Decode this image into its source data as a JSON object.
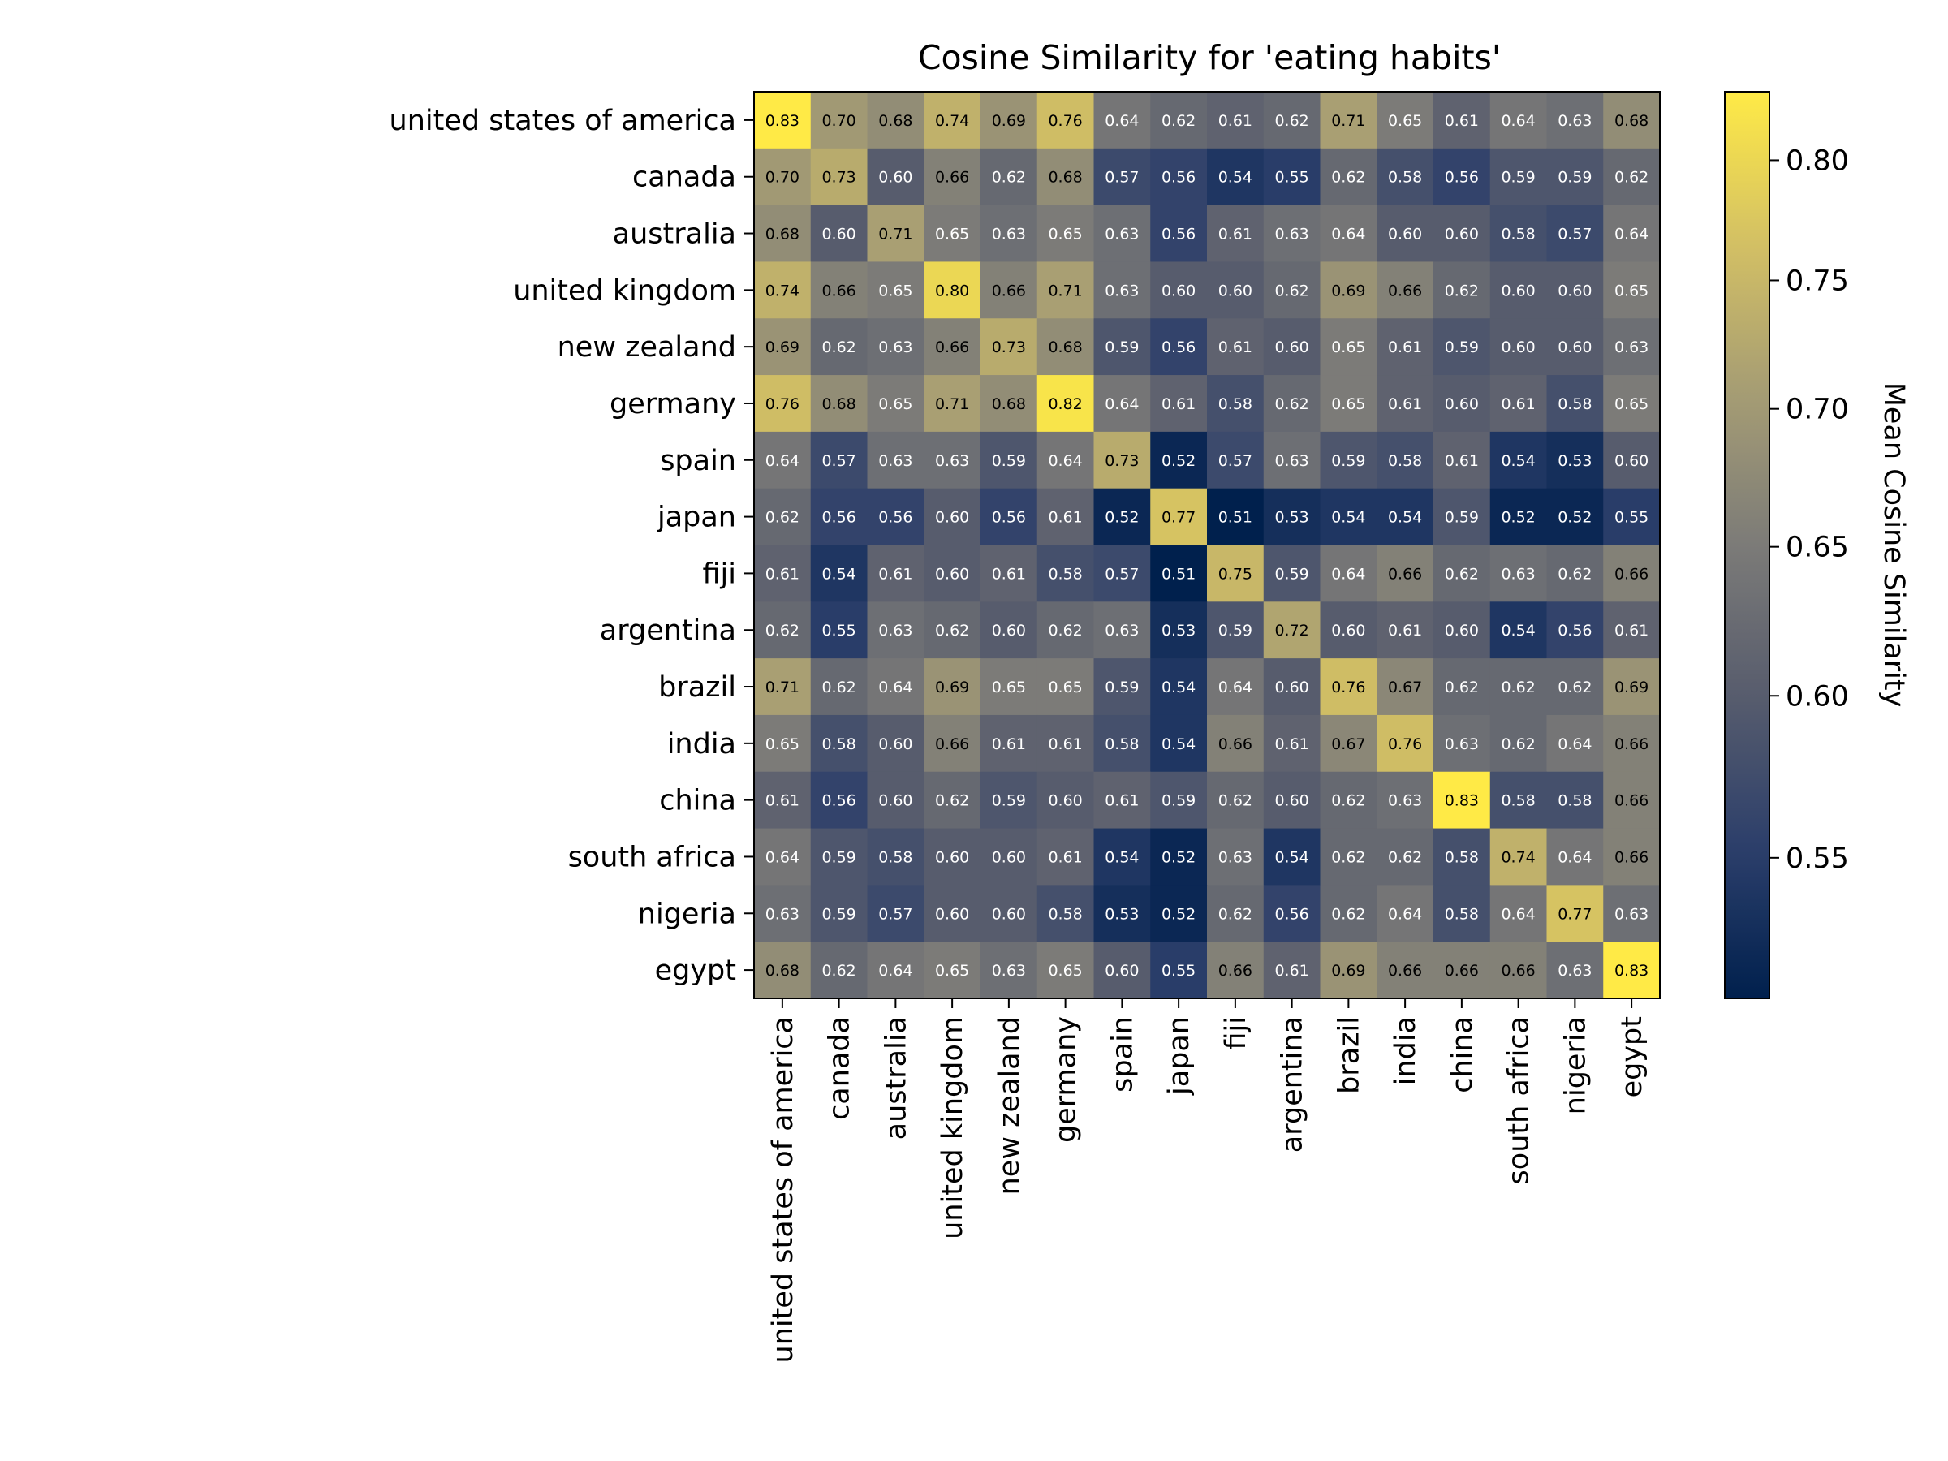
{
  "chart_data": {
    "type": "heatmap",
    "title": "Cosine Similarity for 'eating habits'",
    "categories": [
      "united states of america",
      "canada",
      "australia",
      "united kingdom",
      "new zealand",
      "germany",
      "spain",
      "japan",
      "fiji",
      "argentina",
      "brazil",
      "india",
      "china",
      "south africa",
      "nigeria",
      "egypt"
    ],
    "values": [
      [
        0.83,
        0.7,
        0.68,
        0.74,
        0.69,
        0.76,
        0.64,
        0.62,
        0.61,
        0.62,
        0.71,
        0.65,
        0.61,
        0.64,
        0.63,
        0.68
      ],
      [
        0.7,
        0.73,
        0.6,
        0.66,
        0.62,
        0.68,
        0.57,
        0.56,
        0.54,
        0.55,
        0.62,
        0.58,
        0.56,
        0.59,
        0.59,
        0.62
      ],
      [
        0.68,
        0.6,
        0.71,
        0.65,
        0.63,
        0.65,
        0.63,
        0.56,
        0.61,
        0.63,
        0.64,
        0.6,
        0.6,
        0.58,
        0.57,
        0.64
      ],
      [
        0.74,
        0.66,
        0.65,
        0.8,
        0.66,
        0.71,
        0.63,
        0.6,
        0.6,
        0.62,
        0.69,
        0.66,
        0.62,
        0.6,
        0.6,
        0.65
      ],
      [
        0.69,
        0.62,
        0.63,
        0.66,
        0.73,
        0.68,
        0.59,
        0.56,
        0.61,
        0.6,
        0.65,
        0.61,
        0.59,
        0.6,
        0.6,
        0.63
      ],
      [
        0.76,
        0.68,
        0.65,
        0.71,
        0.68,
        0.82,
        0.64,
        0.61,
        0.58,
        0.62,
        0.65,
        0.61,
        0.6,
        0.61,
        0.58,
        0.65
      ],
      [
        0.64,
        0.57,
        0.63,
        0.63,
        0.59,
        0.64,
        0.73,
        0.52,
        0.57,
        0.63,
        0.59,
        0.58,
        0.61,
        0.54,
        0.53,
        0.6
      ],
      [
        0.62,
        0.56,
        0.56,
        0.6,
        0.56,
        0.61,
        0.52,
        0.77,
        0.51,
        0.53,
        0.54,
        0.54,
        0.59,
        0.52,
        0.52,
        0.55
      ],
      [
        0.61,
        0.54,
        0.61,
        0.6,
        0.61,
        0.58,
        0.57,
        0.51,
        0.75,
        0.59,
        0.64,
        0.66,
        0.62,
        0.63,
        0.62,
        0.66
      ],
      [
        0.62,
        0.55,
        0.63,
        0.62,
        0.6,
        0.62,
        0.63,
        0.53,
        0.59,
        0.72,
        0.6,
        0.61,
        0.6,
        0.54,
        0.56,
        0.61
      ],
      [
        0.71,
        0.62,
        0.64,
        0.69,
        0.65,
        0.65,
        0.59,
        0.54,
        0.64,
        0.6,
        0.76,
        0.67,
        0.62,
        0.62,
        0.62,
        0.69
      ],
      [
        0.65,
        0.58,
        0.6,
        0.66,
        0.61,
        0.61,
        0.58,
        0.54,
        0.66,
        0.61,
        0.67,
        0.76,
        0.63,
        0.62,
        0.64,
        0.66
      ],
      [
        0.61,
        0.56,
        0.6,
        0.62,
        0.59,
        0.6,
        0.61,
        0.59,
        0.62,
        0.6,
        0.62,
        0.63,
        0.83,
        0.58,
        0.58,
        0.66
      ],
      [
        0.64,
        0.59,
        0.58,
        0.6,
        0.6,
        0.61,
        0.54,
        0.52,
        0.63,
        0.54,
        0.62,
        0.62,
        0.58,
        0.74,
        0.64,
        0.66
      ],
      [
        0.63,
        0.59,
        0.57,
        0.6,
        0.6,
        0.58,
        0.53,
        0.52,
        0.62,
        0.56,
        0.62,
        0.64,
        0.58,
        0.64,
        0.77,
        0.63
      ],
      [
        0.68,
        0.62,
        0.64,
        0.65,
        0.63,
        0.65,
        0.6,
        0.55,
        0.66,
        0.61,
        0.69,
        0.66,
        0.66,
        0.66,
        0.63,
        0.83
      ]
    ],
    "value_format": "0.00",
    "colormap": "cividis",
    "colormap_stops": [
      "#00204d",
      "#2c3f6b",
      "#575c6d",
      "#7c7b78",
      "#a59c74",
      "#d3c064",
      "#ffea46"
    ],
    "vmin": 0.51,
    "vmax": 0.83,
    "colorbar": {
      "label": "Mean Cosine Similarity",
      "ticks": [
        0.55,
        0.6,
        0.65,
        0.7,
        0.75,
        0.8
      ],
      "tick_labels": [
        "0.55",
        "0.60",
        "0.65",
        "0.70",
        "0.75",
        "0.80"
      ],
      "scale": "log"
    },
    "grid": false
  }
}
